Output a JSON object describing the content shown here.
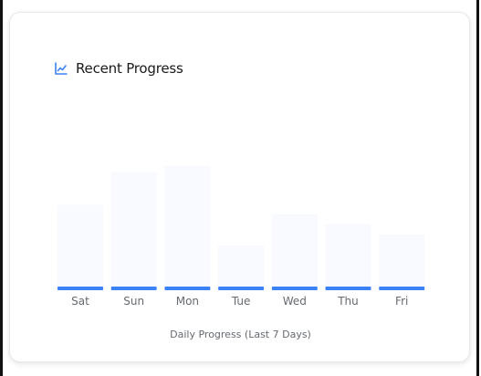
{
  "card": {
    "title": "Recent Progress",
    "icon": "line-chart-icon",
    "caption": "Daily Progress (Last 7 Days)"
  },
  "colors": {
    "accent": "#3b82f6",
    "bar_fill": "#f8faff",
    "label": "#666a70",
    "title": "#1a1a1a"
  },
  "chart_data": {
    "type": "bar",
    "categories": [
      "Sat",
      "Sun",
      "Mon",
      "Tue",
      "Wed",
      "Thu",
      "Fri"
    ],
    "values": [
      0.68,
      0.95,
      1.0,
      0.34,
      0.6,
      0.52,
      0.43
    ],
    "ylim": [
      0,
      1
    ],
    "xlabel": "Daily Progress (Last 7 Days)",
    "ylabel": "",
    "title": "Recent Progress",
    "grid": false
  }
}
